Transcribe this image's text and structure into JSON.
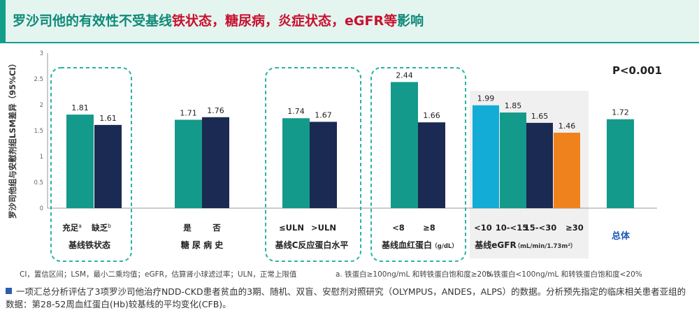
{
  "header": {
    "title_part1": "罗沙司他的有效性不受基线",
    "title_part2": "铁状态，糖尿病，炎症状态，eGFR等",
    "title_part3": "影响"
  },
  "colors": {
    "teal": "#149a8a",
    "navy": "#1b2a52",
    "cyan": "#13acd6",
    "orange": "#f0821e",
    "dash": "#2ab3a2",
    "title_teal": "#0f8a78",
    "title_red": "#c8102e"
  },
  "chart_data": {
    "type": "bar",
    "ylabel": "罗沙司他组与安慰剂组LSM差异（95%CI）",
    "ylim": [
      0,
      3
    ],
    "yticks": [
      "0",
      "0.5",
      "1",
      "1.5",
      "2",
      "2.5",
      "3"
    ],
    "annotation": "P<0.001",
    "groups": [
      {
        "name": "基线铁状态",
        "boxed": true,
        "bars": [
          {
            "label": "充足",
            "sup": "a",
            "value": 1.81,
            "value_label": "1.81",
            "color": "teal"
          },
          {
            "label": "缺乏",
            "sup": "b",
            "value": 1.61,
            "value_label": "1.61",
            "color": "navy"
          }
        ]
      },
      {
        "name": "糖 尿 病 史",
        "boxed": false,
        "bars": [
          {
            "label": "是",
            "value": 1.71,
            "value_label": "1.71",
            "color": "teal"
          },
          {
            "label": "否",
            "value": 1.76,
            "value_label": "1.76",
            "color": "navy"
          }
        ]
      },
      {
        "name": "基线C反应蛋白水平",
        "boxed": true,
        "bars": [
          {
            "label": "≤ULN",
            "value": 1.74,
            "value_label": "1.74",
            "color": "teal"
          },
          {
            "label": ">ULN",
            "value": 1.67,
            "value_label": "1.67",
            "color": "navy"
          }
        ]
      },
      {
        "name": "基线血红蛋白",
        "unit": "（g/dL）",
        "boxed": true,
        "bars": [
          {
            "label": "<8",
            "value": 2.44,
            "value_label": "2.44",
            "color": "teal"
          },
          {
            "label": "≥8",
            "value": 1.66,
            "value_label": "1.66",
            "color": "navy"
          }
        ]
      },
      {
        "name": "基线eGFR",
        "unit": "（mL/min/1.73m²）",
        "boxed": false,
        "shaded": true,
        "bars": [
          {
            "label": "<10",
            "value": 1.99,
            "value_label": "1.99",
            "color": "cyan"
          },
          {
            "label": "10-<15",
            "value": 1.85,
            "value_label": "1.85",
            "color": "teal"
          },
          {
            "label": "15-<30",
            "value": 1.65,
            "value_label": "1.65",
            "color": "navy"
          },
          {
            "label": "≥30",
            "value": 1.46,
            "value_label": "1.46",
            "color": "orange"
          }
        ]
      },
      {
        "name": "",
        "boxed": false,
        "bars": [
          {
            "label": "总体",
            "value": 1.72,
            "value_label": "1.72",
            "color": "teal",
            "total": true
          }
        ]
      }
    ]
  },
  "footnotes": {
    "abbrev": "CI，置信区间；LSM，最小二乘均值；eGFR，估算肾小球滤过率；ULN，正常上限值",
    "a": "a. 铁蛋白≥100ng/mL 和转铁蛋白饱和度≥20%",
    "b": "b.铁蛋白<100ng/mL 和转铁蛋白饱和度<20%"
  },
  "source": "一项汇总分析评估了3项罗沙司他治疗NDD-CKD患者贫血的3期、随机、双盲、安慰剂对照研究（OLYMPUS，ANDES，ALPS）的数据。分析预先指定的临床相关患者亚组的数据：第28-52周血红蛋白(Hb)较基线的平均变化(CFB)。"
}
